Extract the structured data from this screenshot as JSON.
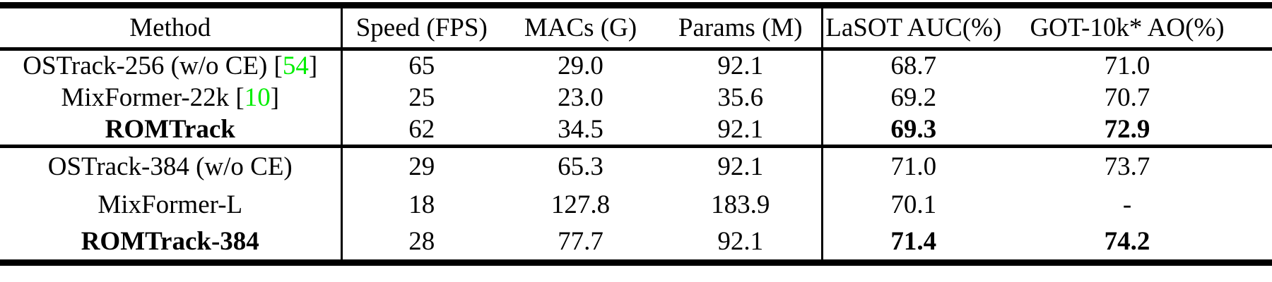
{
  "table": {
    "columns": [
      {
        "key": "method",
        "label": "Method"
      },
      {
        "key": "speed",
        "label": "Speed (FPS)"
      },
      {
        "key": "macs",
        "label": "MACs (G)"
      },
      {
        "key": "params",
        "label": "Params (M)"
      },
      {
        "key": "lasot",
        "label": "LaSOT AUC(%)"
      },
      {
        "key": "got",
        "label": "GOT-10k* AO(%)"
      }
    ],
    "cite_brackets": {
      "open": "[",
      "close": "]"
    },
    "colors": {
      "text": "#000000",
      "background": "#FFFFFF",
      "citation_green": "#00EE00",
      "rule": "#000000"
    },
    "groups": [
      {
        "rows": [
          {
            "method": "OSTrack-256 (w/o CE)",
            "cite": "54",
            "bold_method": false,
            "speed": "65",
            "macs": "29.0",
            "params": "92.1",
            "lasot": "68.7",
            "got": "71.0",
            "bold_results": false
          },
          {
            "method": "MixFormer-22k",
            "cite": "10",
            "bold_method": false,
            "speed": "25",
            "macs": "23.0",
            "params": "35.6",
            "lasot": "69.2",
            "got": "70.7",
            "bold_results": false
          },
          {
            "method": "ROMTrack",
            "cite": null,
            "bold_method": true,
            "speed": "62",
            "macs": "34.5",
            "params": "92.1",
            "lasot": "69.3",
            "got": "72.9",
            "bold_results": true
          }
        ]
      },
      {
        "rows": [
          {
            "method": "OSTrack-384 (w/o CE)",
            "cite": null,
            "bold_method": false,
            "speed": "29",
            "macs": "65.3",
            "params": "92.1",
            "lasot": "71.0",
            "got": "73.7",
            "bold_results": false
          },
          {
            "method": "MixFormer-L",
            "cite": null,
            "bold_method": false,
            "speed": "18",
            "macs": "127.8",
            "params": "183.9",
            "lasot": "70.1",
            "got": "-",
            "bold_results": false
          },
          {
            "method": "ROMTrack-384",
            "cite": null,
            "bold_method": true,
            "speed": "28",
            "macs": "77.7",
            "params": "92.1",
            "lasot": "71.4",
            "got": "74.2",
            "bold_results": true
          }
        ]
      }
    ]
  }
}
